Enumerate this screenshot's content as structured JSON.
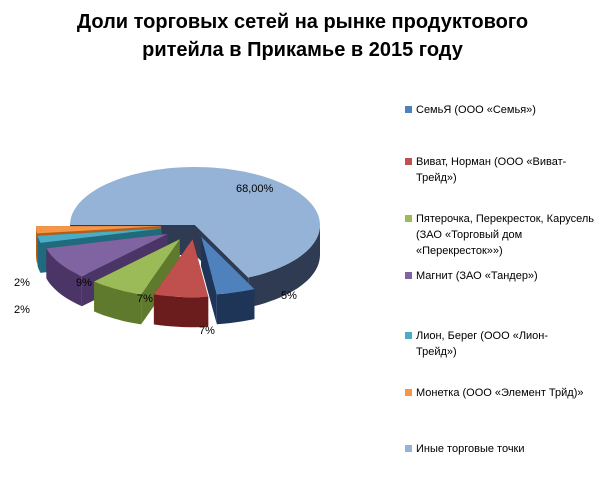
{
  "chart_data": {
    "type": "pie",
    "title": "Доли торговых сетей на рынке продуктового ритейла в Прикамье в 2015 году",
    "title_lines": [
      "Доли торговых сетей на рынке продуктового",
      "ритейла в Прикамье в 2015 году"
    ],
    "categories": [
      "СемьЯ (ООО «Семья»)",
      "Виват, Норман (ООО «Виват-Трейд»)",
      "Пятерочка,  Перекресток, Карусель (ЗАО «Торговый дом «Перекресток»»)",
      "Магнит (ЗАО «Тандер»)",
      "Лион, Берег (ООО «Лион-Трейд»)",
      "Монетка (ООО «Элемент Трйд)»",
      "Иные торговые точки"
    ],
    "values": [
      5,
      7,
      7,
      9,
      2,
      2,
      68
    ],
    "data_labels": [
      "5%",
      "7%",
      "7%",
      "9%",
      "2%",
      "2%",
      "68,00%"
    ],
    "colors": [
      "#4f81bd",
      "#c0504d",
      "#9bbb59",
      "#8064a2",
      "#4bacc6",
      "#f79646",
      "#95b3d7"
    ],
    "side_colors": [
      "#1f3558",
      "#6b1c1c",
      "#5f7a2c",
      "#4a3566",
      "#1f6a7d",
      "#b0601c",
      "#2f3b52"
    ],
    "legend_position": "right",
    "style": "3d-exploded"
  }
}
